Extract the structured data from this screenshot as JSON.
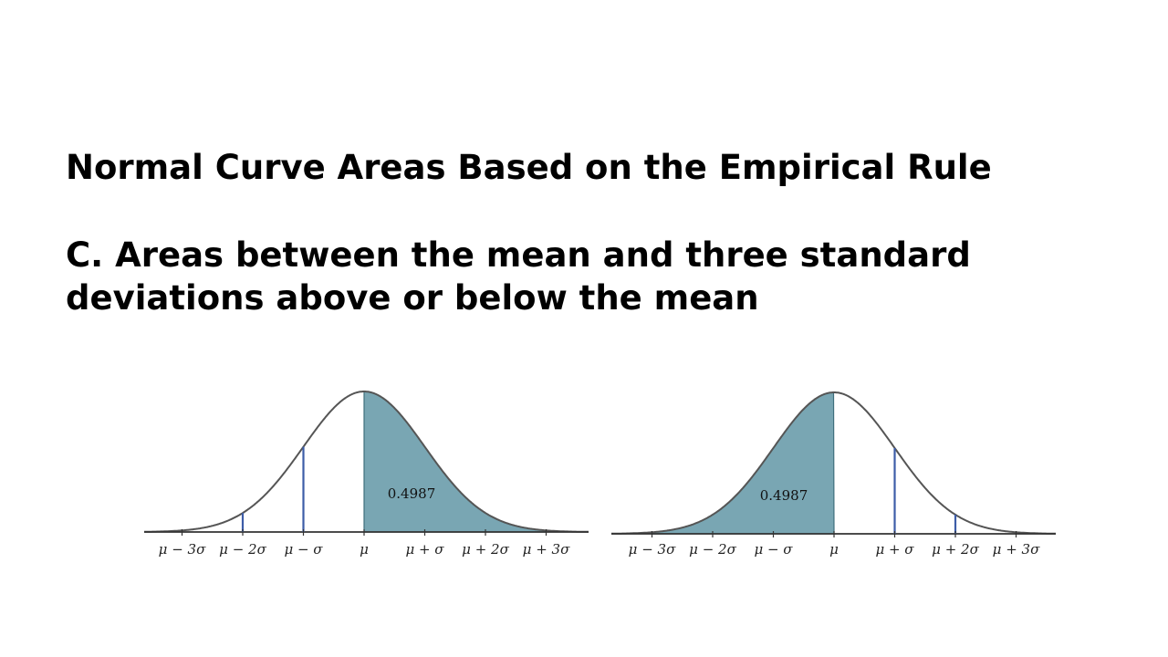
{
  "slide": {
    "title": "Normal Curve Areas Based on the Empirical Rule",
    "subtitle": "C. Areas between the mean and three standard deviations above or below the mean"
  },
  "colors": {
    "shade": "#5b93a2",
    "curve": "#555555",
    "marker": "#3d5da8"
  },
  "diagrams": [
    {
      "name": "right-shaded-curve",
      "shaded_from_sd": 0,
      "shaded_to_sd": 3,
      "area_label": "0.4987",
      "marker_sds": [
        -2,
        -1
      ],
      "tick_labels": [
        "μ − 3σ",
        "μ − 2σ",
        "μ − σ",
        "μ",
        "μ + σ",
        "μ + 2σ",
        "μ + 3σ"
      ]
    },
    {
      "name": "left-shaded-curve",
      "shaded_from_sd": -3,
      "shaded_to_sd": 0,
      "area_label": "0.4987",
      "marker_sds": [
        1,
        2
      ],
      "tick_labels": [
        "μ − 3σ",
        "μ − 2σ",
        "μ − σ",
        "μ",
        "μ + σ",
        "μ + 2σ",
        "μ + 3σ"
      ]
    }
  ]
}
